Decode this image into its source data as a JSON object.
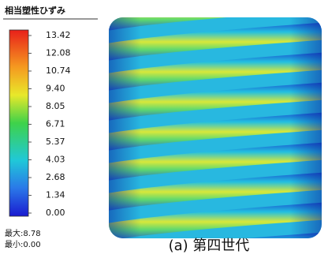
{
  "legend": {
    "title": "相当塑性ひずみ",
    "labels": [
      "13.42",
      "12.08",
      "10.74",
      "9.40",
      "8.05",
      "6.71",
      "5.37",
      "4.03",
      "2.68",
      "1.34",
      "0.00"
    ]
  },
  "stats": {
    "max": "最大:8.78",
    "min": "最小:0.00"
  },
  "caption": "(a) 第四世代"
}
